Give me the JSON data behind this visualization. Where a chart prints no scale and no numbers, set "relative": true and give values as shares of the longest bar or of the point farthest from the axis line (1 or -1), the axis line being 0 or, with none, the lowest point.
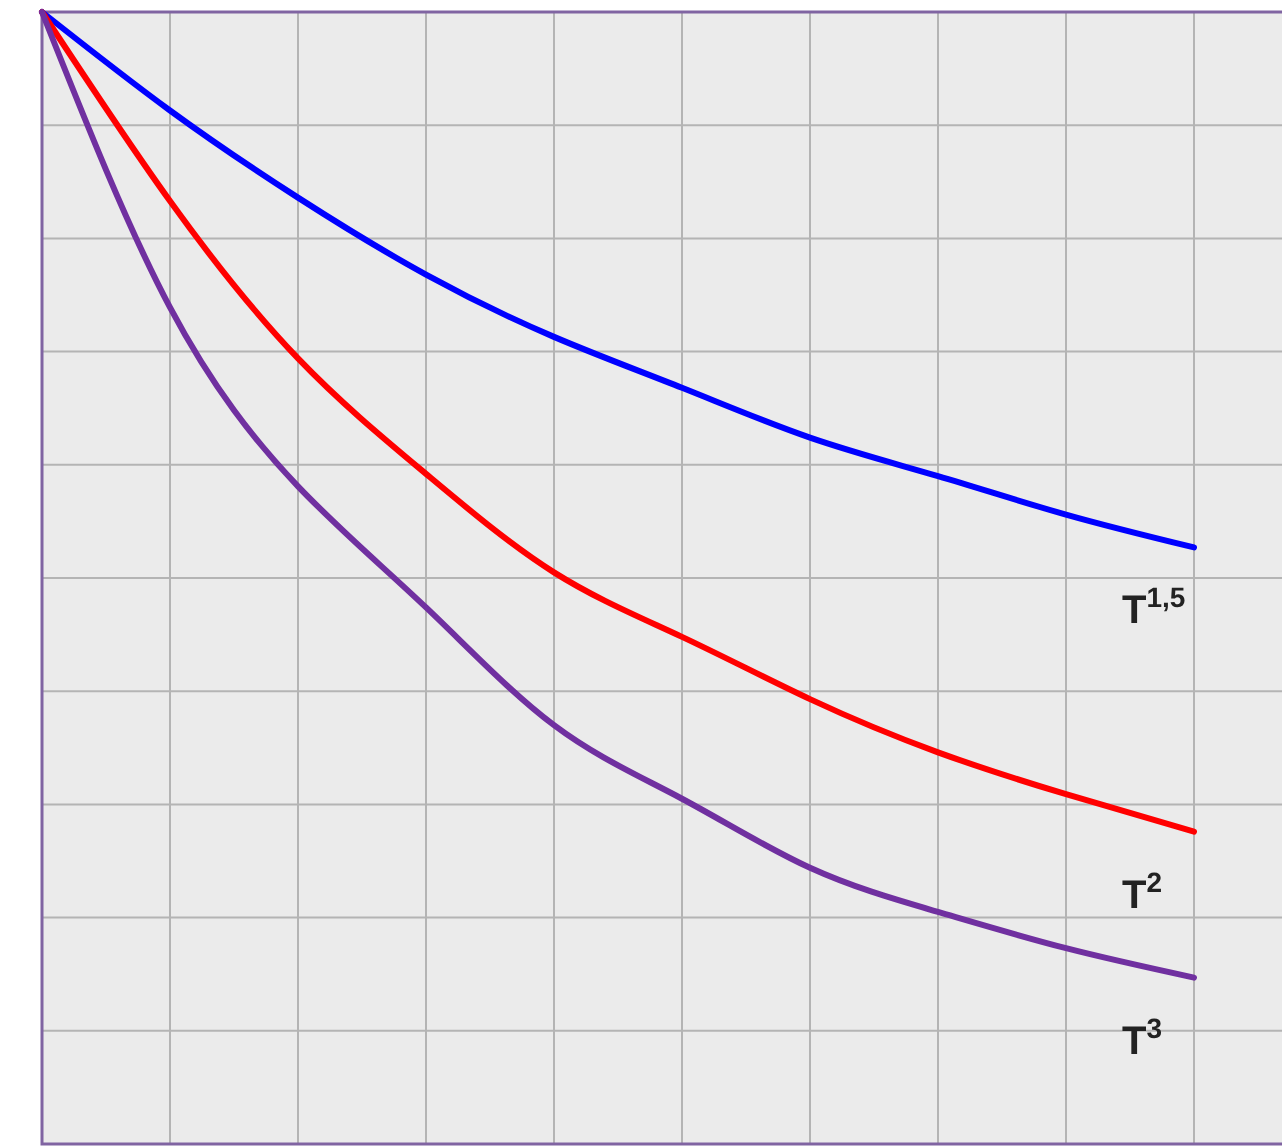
{
  "chart_data": {
    "type": "line",
    "relative": true,
    "grid": true,
    "marker": "none",
    "line_style": "solid",
    "categories": [
      null,
      null,
      null,
      null,
      null,
      null,
      null,
      null,
      null,
      null
    ],
    "series": [
      {
        "name": "T$^{1,5}$",
        "color": "#0000ff",
        "values": [
          1.0,
          0.913,
          0.836,
          0.768,
          0.713,
          0.668,
          0.624,
          0.59,
          0.556,
          0.527
        ]
      },
      {
        "name": "T$^{2}$",
        "color": "#ff0000",
        "values": [
          1.0,
          0.833,
          0.694,
          0.592,
          0.505,
          0.448,
          0.393,
          0.346,
          0.309,
          0.276
        ]
      },
      {
        "name": "T$^{3}$",
        "color": "#7030a0",
        "values": [
          1.0,
          0.739,
          0.581,
          0.474,
          0.37,
          0.305,
          0.244,
          0.205,
          0.173,
          0.147
        ]
      }
    ]
  }
}
